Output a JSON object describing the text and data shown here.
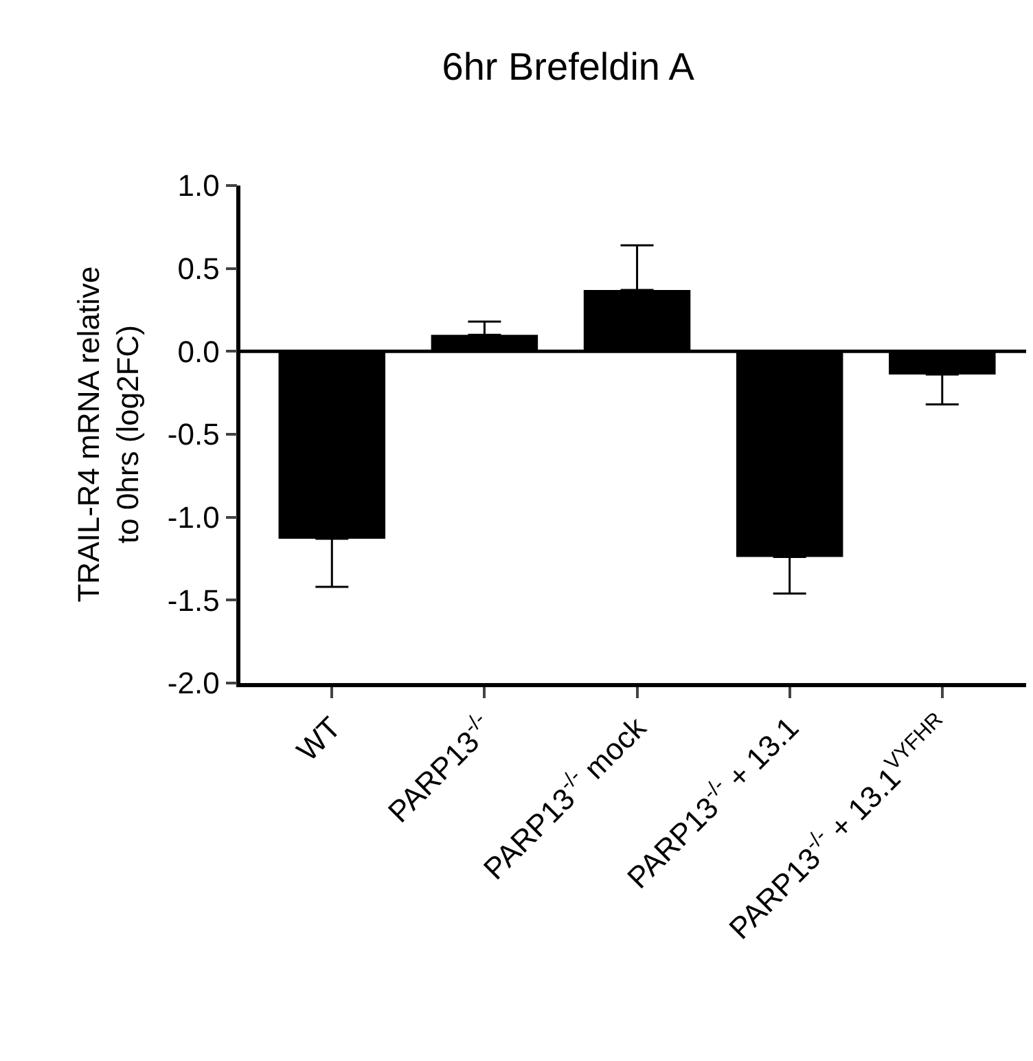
{
  "chart_data": {
    "type": "bar",
    "title": "6hr Brefeldin A",
    "ylabel": "TRAIL-R4 mRNA relative\nto 0hrs (log2FC)",
    "categories": [
      "WT",
      "PARP13$^{-/-}$",
      "PARP13$^{-/-}$ mock",
      "PARP13$^{-/-}$ + 13.1",
      "PARP13$^{-/-}$ + 13.1$^{VYFHR}$"
    ],
    "values": [
      -1.13,
      0.1,
      0.37,
      -1.24,
      -0.14
    ],
    "errors": [
      [
        -1.42,
        -1.13
      ],
      [
        0.1,
        0.18
      ],
      [
        0.37,
        0.64
      ],
      [
        -1.46,
        -1.24
      ],
      [
        -0.32,
        -0.14
      ]
    ],
    "ref_lines": [
      {
        "axis": "y",
        "value": 0.0
      }
    ],
    "color": "#000000",
    "ylim": [
      -2.0,
      1.0
    ],
    "yticks": [
      {
        "value": -2.0,
        "label": "-2.0"
      },
      {
        "value": -1.5,
        "label": "-1.5"
      },
      {
        "value": -1.0,
        "label": "-1.0"
      },
      {
        "value": -0.5,
        "label": "-0.5"
      },
      {
        "value": 0.0,
        "label": "0.0"
      },
      {
        "value": 0.5,
        "label": "0.5"
      },
      {
        "value": 1.0,
        "label": "1.0"
      }
    ],
    "grid": false
  }
}
